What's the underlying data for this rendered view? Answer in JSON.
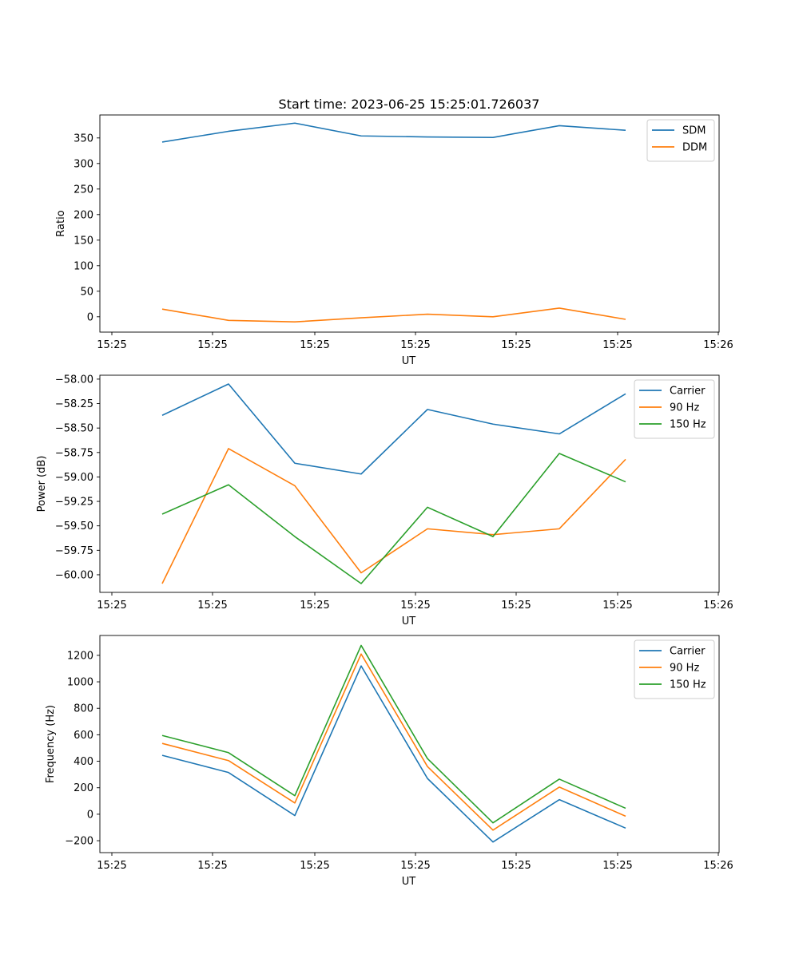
{
  "figure": {
    "title": "Start time: 2023-06-25 15:25:01.726037"
  },
  "chart_data": [
    {
      "type": "line",
      "xlabel": "UT",
      "ylabel": "Ratio",
      "xtick_labels": [
        "15:25",
        "15:25",
        "15:25",
        "15:25",
        "15:25",
        "15:25",
        "15:26"
      ],
      "yticks": [
        0,
        50,
        100,
        150,
        200,
        250,
        300,
        350
      ],
      "ylim": [
        -30,
        395
      ],
      "legend_position": "upper-right",
      "series": [
        {
          "name": "SDM",
          "color": "#1f77b4",
          "values": [
            342,
            363,
            379,
            354,
            352,
            351,
            374,
            365
          ]
        },
        {
          "name": "DDM",
          "color": "#ff7f0e",
          "values": [
            15,
            -7,
            -10,
            -2,
            5,
            0,
            17,
            -5
          ]
        }
      ]
    },
    {
      "type": "line",
      "xlabel": "UT",
      "ylabel": "Power (dB)",
      "xtick_labels": [
        "15:25",
        "15:25",
        "15:25",
        "15:25",
        "15:25",
        "15:25",
        "15:26"
      ],
      "yticks": [
        -60.0,
        -59.75,
        -59.5,
        -59.25,
        -59.0,
        -58.75,
        -58.5,
        -58.25,
        -58.0
      ],
      "ytick_labels": [
        "−60.00",
        "−59.75",
        "−59.50",
        "−59.25",
        "−59.00",
        "−58.75",
        "−58.50",
        "−58.25",
        "−58.00"
      ],
      "ylim": [
        -60.18,
        -57.96
      ],
      "legend_position": "upper-right",
      "series": [
        {
          "name": "Carrier",
          "color": "#1f77b4",
          "values": [
            -58.37,
            -58.05,
            -58.86,
            -58.97,
            -58.31,
            -58.46,
            -58.56,
            -58.15
          ]
        },
        {
          "name": "90 Hz",
          "color": "#ff7f0e",
          "values": [
            -60.09,
            -58.71,
            -59.09,
            -59.98,
            -59.53,
            -59.59,
            -59.53,
            -58.82
          ]
        },
        {
          "name": "150 Hz",
          "color": "#2ca02c",
          "values": [
            -59.38,
            -59.08,
            -59.61,
            -60.09,
            -59.31,
            -59.61,
            -58.76,
            -59.05
          ]
        }
      ]
    },
    {
      "type": "line",
      "xlabel": "UT",
      "ylabel": "Frequency (Hz)",
      "xtick_labels": [
        "15:25",
        "15:25",
        "15:25",
        "15:25",
        "15:25",
        "15:25",
        "15:26"
      ],
      "yticks": [
        -200,
        0,
        200,
        400,
        600,
        800,
        1000,
        1200
      ],
      "ytick_labels": [
        "−200",
        "0",
        "200",
        "400",
        "600",
        "800",
        "1000",
        "1200"
      ],
      "ylim": [
        -290,
        1350
      ],
      "legend_position": "upper-right",
      "series": [
        {
          "name": "Carrier",
          "color": "#1f77b4",
          "values": [
            445,
            315,
            -10,
            1120,
            270,
            -210,
            110,
            -105
          ]
        },
        {
          "name": "90 Hz",
          "color": "#ff7f0e",
          "values": [
            535,
            405,
            85,
            1210,
            360,
            -120,
            205,
            -15
          ]
        },
        {
          "name": "150 Hz",
          "color": "#2ca02c",
          "values": [
            595,
            465,
            140,
            1275,
            420,
            -65,
            265,
            45
          ]
        }
      ]
    }
  ]
}
